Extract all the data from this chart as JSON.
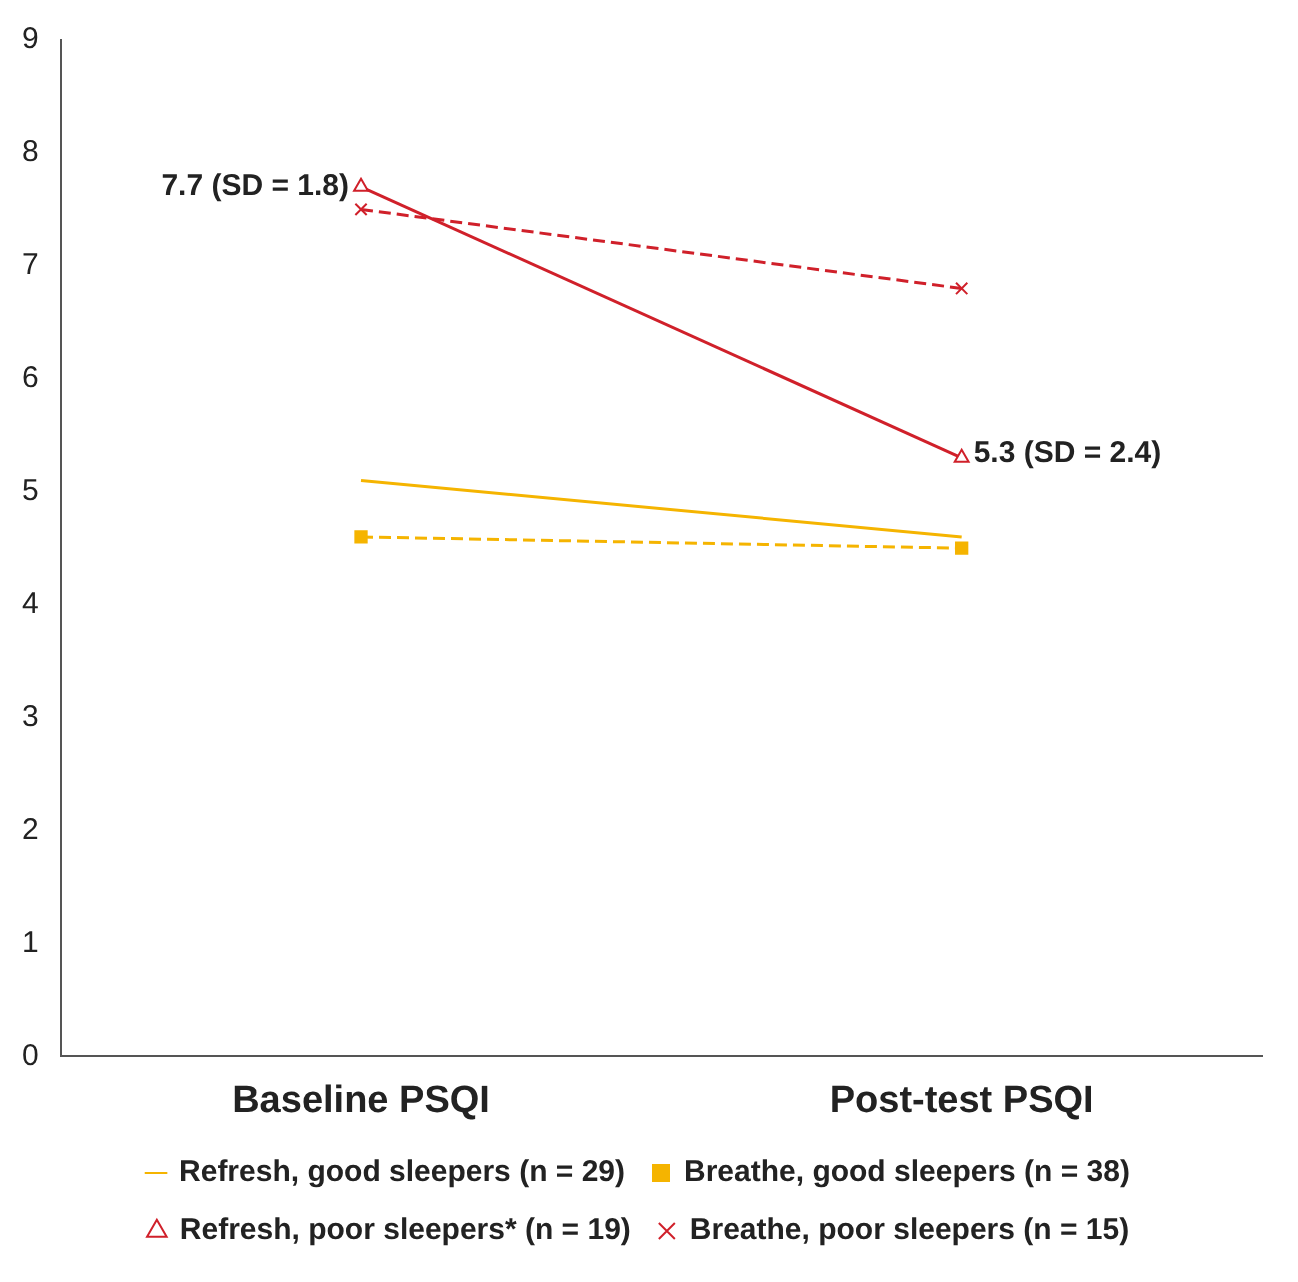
{
  "chart_data": {
    "type": "line",
    "categories": [
      "Baseline PSQI",
      "Post-test PSQI"
    ],
    "series": [
      {
        "name": "Refresh, good sleepers (n = 29)",
        "color": "#f5b400",
        "values": [
          5.1,
          4.6
        ],
        "marker": "none",
        "line_style": "solid"
      },
      {
        "name": "Breathe, good sleepers (n = 38)",
        "color": "#f5b400",
        "values": [
          4.6,
          4.5
        ],
        "marker": "square",
        "line_style": "dashed"
      },
      {
        "name": "Refresh, poor sleepers* (n = 19)",
        "color": "#d0202a",
        "values": [
          7.7,
          5.3
        ],
        "marker": "triangle",
        "line_style": "solid"
      },
      {
        "name": "Breathe, poor sleepers (n = 15)",
        "color": "#d0202a",
        "values": [
          7.5,
          6.8
        ],
        "marker": "cross",
        "line_style": "dashed"
      }
    ],
    "ylim": [
      0,
      9
    ],
    "yticks": [
      0,
      1,
      2,
      3,
      4,
      5,
      6,
      7,
      8,
      9
    ],
    "grid": false,
    "legend": "bottom",
    "annotations": [
      {
        "text": "7.7 (SD = 1.8)",
        "x": "Baseline PSQI",
        "y": 7.7
      },
      {
        "text": "5.3 (SD = 2.4)",
        "x": "Post-test PSQI",
        "y": 5.3
      }
    ]
  }
}
